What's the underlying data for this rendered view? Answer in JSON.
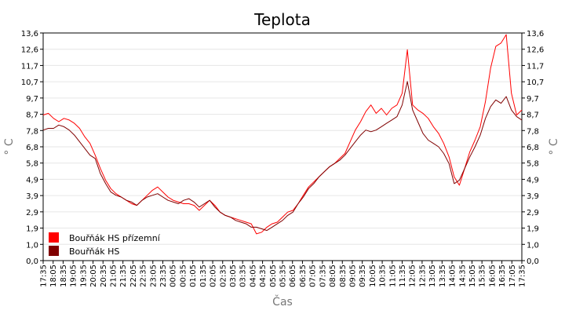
{
  "chart_data": {
    "type": "line",
    "title": "Teplota",
    "xlabel": "Čas",
    "ylabel": "° C",
    "ylabel_right": "° C",
    "grid": true,
    "legend_position": "bottom-left",
    "ylim": [
      0.0,
      13.6
    ],
    "y_ticks": [
      "0,0",
      "1,0",
      "1,9",
      "2,9",
      "3,9",
      "4,9",
      "5,8",
      "6,8",
      "7,8",
      "8,7",
      "9,7",
      "10,7",
      "11,7",
      "12,6",
      "13,6"
    ],
    "x_ticks": [
      "17:35",
      "18:05",
      "18:35",
      "19:05",
      "19:35",
      "20:05",
      "20:35",
      "21:05",
      "21:35",
      "22:05",
      "22:35",
      "23:05",
      "23:35",
      "00:05",
      "00:35",
      "01:05",
      "01:35",
      "02:05",
      "02:35",
      "03:05",
      "03:35",
      "04:05",
      "04:35",
      "05:05",
      "05:35",
      "06:05",
      "06:35",
      "07:05",
      "07:35",
      "08:05",
      "08:35",
      "09:05",
      "09:35",
      "10:05",
      "10:35",
      "11:05",
      "11:35",
      "12:05",
      "12:35",
      "13:05",
      "13:35",
      "14:05",
      "14:35",
      "15:05",
      "15:35",
      "16:05",
      "16:35",
      "17:05",
      "17:35"
    ],
    "series": [
      {
        "name": "Bouřňák HS přízemní",
        "color": "#ff0000",
        "values": [
          8.7,
          8.8,
          8.5,
          8.3,
          8.5,
          8.4,
          8.2,
          7.9,
          7.4,
          7.0,
          6.3,
          5.5,
          4.8,
          4.3,
          4.0,
          3.8,
          3.6,
          3.4,
          3.3,
          3.6,
          3.9,
          4.2,
          4.4,
          4.1,
          3.8,
          3.6,
          3.5,
          3.4,
          3.4,
          3.3,
          3.0,
          3.3,
          3.6,
          3.3,
          2.9,
          2.7,
          2.6,
          2.5,
          2.4,
          2.3,
          2.2,
          1.6,
          1.7,
          2.0,
          2.2,
          2.3,
          2.6,
          2.9,
          3.0,
          3.4,
          3.9,
          4.4,
          4.7,
          5.0,
          5.3,
          5.6,
          5.8,
          6.1,
          6.4,
          7.1,
          7.8,
          8.3,
          8.9,
          9.3,
          8.8,
          9.1,
          8.7,
          9.1,
          9.3,
          10.0,
          12.6,
          9.3,
          9.0,
          8.8,
          8.5,
          8.0,
          7.6,
          7.0,
          6.2,
          5.0,
          4.5,
          5.5,
          6.5,
          7.2,
          8.0,
          9.5,
          11.5,
          12.8,
          13.0,
          13.5,
          10.0,
          8.7,
          9.0
        ]
      },
      {
        "name": "Bouřňák HS",
        "color": "#800000",
        "values": [
          7.8,
          7.9,
          7.9,
          8.1,
          8.0,
          7.8,
          7.5,
          7.1,
          6.7,
          6.3,
          6.1,
          5.2,
          4.6,
          4.1,
          3.9,
          3.8,
          3.6,
          3.5,
          3.3,
          3.6,
          3.8,
          3.9,
          4.0,
          3.8,
          3.6,
          3.5,
          3.4,
          3.6,
          3.7,
          3.5,
          3.2,
          3.4,
          3.6,
          3.2,
          2.9,
          2.7,
          2.6,
          2.4,
          2.3,
          2.2,
          2.0,
          2.0,
          1.9,
          1.8,
          2.0,
          2.2,
          2.4,
          2.7,
          2.9,
          3.4,
          3.8,
          4.3,
          4.6,
          5.0,
          5.3,
          5.6,
          5.8,
          6.0,
          6.3,
          6.7,
          7.1,
          7.5,
          7.8,
          7.7,
          7.8,
          8.0,
          8.2,
          8.4,
          8.6,
          9.3,
          10.7,
          9.0,
          8.3,
          7.6,
          7.2,
          7.0,
          6.8,
          6.4,
          5.8,
          4.6,
          4.8,
          5.5,
          6.2,
          6.8,
          7.5,
          8.5,
          9.2,
          9.6,
          9.4,
          9.8,
          9.0,
          8.6,
          8.4
        ]
      }
    ]
  }
}
